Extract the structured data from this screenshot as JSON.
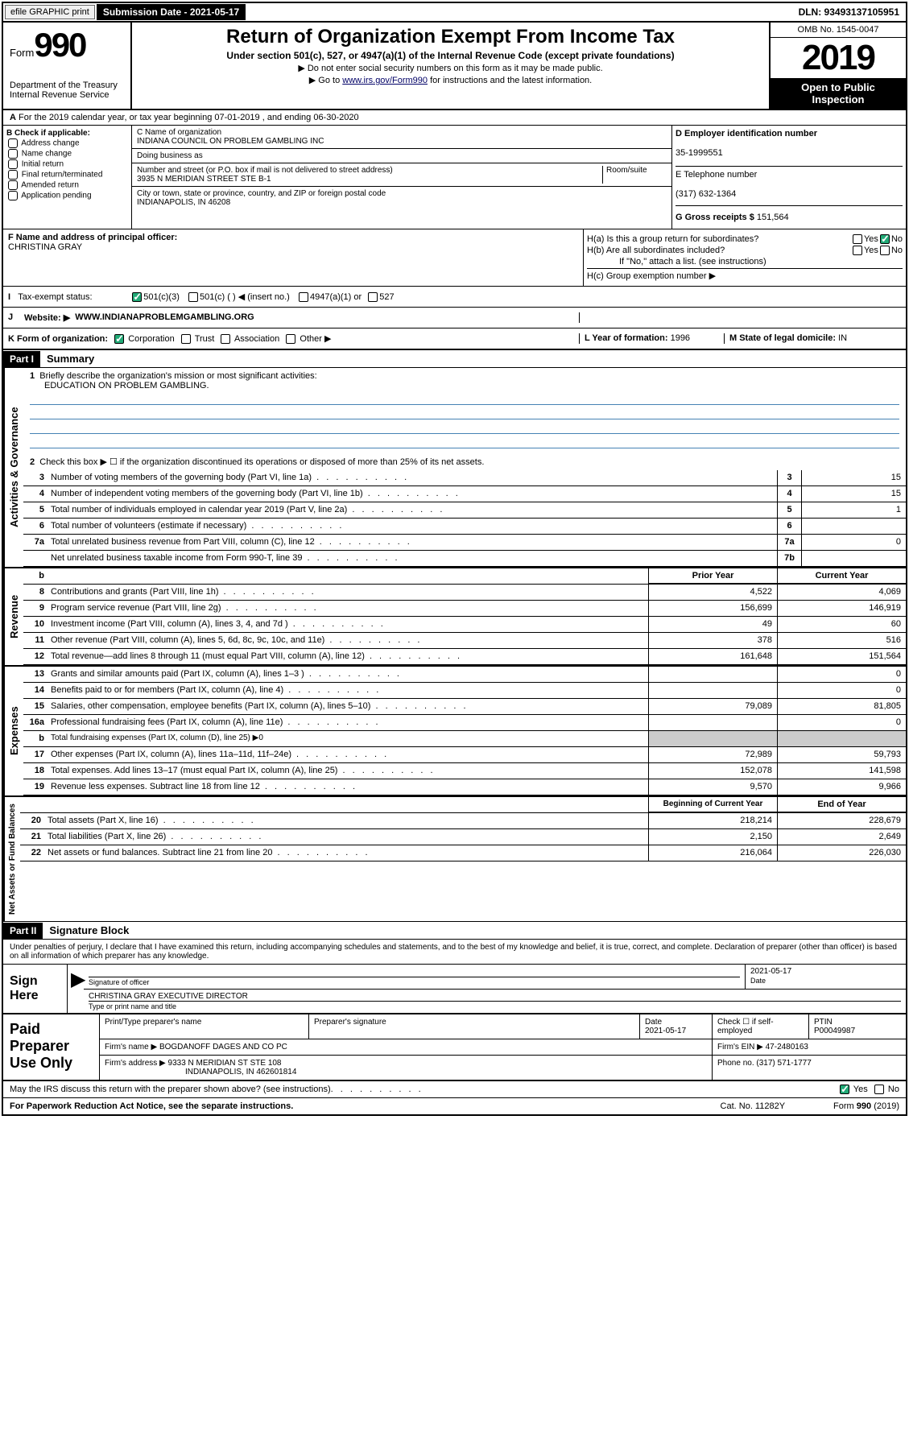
{
  "topbar": {
    "efile": "efile GRAPHIC print",
    "submission": "Submission Date - 2021-05-17",
    "dln": "DLN: 93493137105951"
  },
  "header": {
    "form_prefix": "Form",
    "form_number": "990",
    "title": "Return of Organization Exempt From Income Tax",
    "subtitle": "Under section 501(c), 527, or 4947(a)(1) of the Internal Revenue Code (except private foundations)",
    "instr1": "▶ Do not enter social security numbers on this form as it may be made public.",
    "instr2_pre": "▶ Go to ",
    "instr2_link": "www.irs.gov/Form990",
    "instr2_post": " for instructions and the latest information.",
    "omb": "OMB No. 1545-0047",
    "year": "2019",
    "open": "Open to Public Inspection",
    "dept": "Department of the Treasury\nInternal Revenue Service"
  },
  "line_a": "For the 2019 calendar year, or tax year beginning 07-01-2019     , and ending 06-30-2020",
  "box_b": {
    "label": "B Check if applicable:",
    "items": [
      "Address change",
      "Name change",
      "Initial return",
      "Final return/terminated",
      "Amended return",
      "Application pending"
    ]
  },
  "box_c": {
    "name_label": "C Name of organization",
    "name": "INDIANA COUNCIL ON PROBLEM GAMBLING INC",
    "dba_label": "Doing business as",
    "street_label": "Number and street (or P.O. box if mail is not delivered to street address)",
    "room_label": "Room/suite",
    "street": "3935 N MERIDIAN STREET STE B-1",
    "city_label": "City or town, state or province, country, and ZIP or foreign postal code",
    "city": "INDIANAPOLIS, IN  46208"
  },
  "box_d": {
    "label": "D Employer identification number",
    "value": "35-1999551"
  },
  "box_e": {
    "label": "E Telephone number",
    "value": "(317) 632-1364"
  },
  "box_g": {
    "label": "G Gross receipts $",
    "value": "151,564"
  },
  "box_f": {
    "label": "F  Name and address of principal officer:",
    "value": "CHRISTINA GRAY"
  },
  "box_h": {
    "ha": "H(a)  Is this a group return for subordinates?",
    "hb": "H(b)  Are all subordinates included?",
    "hb_note": "If \"No,\" attach a list. (see instructions)",
    "hc": "H(c)  Group exemption number ▶"
  },
  "tax_status": {
    "label": "Tax-exempt status:",
    "opts": [
      "501(c)(3)",
      "501(c) (  ) ◀ (insert no.)",
      "4947(a)(1) or",
      "527"
    ]
  },
  "website": {
    "j": "J",
    "label": "Website: ▶",
    "value": "WWW.INDIANAPROBLEMGAMBLING.ORG"
  },
  "box_k": {
    "label": "K Form of organization:",
    "opts": [
      "Corporation",
      "Trust",
      "Association",
      "Other ▶"
    ]
  },
  "box_l": {
    "label": "L Year of formation:",
    "value": "1996"
  },
  "box_m": {
    "label": "M State of legal domicile:",
    "value": "IN"
  },
  "part1": {
    "header": "Part I",
    "title": "Summary",
    "l1_label": "Briefly describe the organization's mission or most significant activities:",
    "l1_value": "EDUCATION ON PROBLEM GAMBLING.",
    "l2": "Check this box ▶ ☐  if the organization discontinued its operations or disposed of more than 25% of its net assets.",
    "lines_ag": [
      {
        "num": "3",
        "text": "Number of voting members of the governing body (Part VI, line 1a)",
        "box": "3",
        "val": "15"
      },
      {
        "num": "4",
        "text": "Number of independent voting members of the governing body (Part VI, line 1b)",
        "box": "4",
        "val": "15"
      },
      {
        "num": "5",
        "text": "Total number of individuals employed in calendar year 2019 (Part V, line 2a)",
        "box": "5",
        "val": "1"
      },
      {
        "num": "6",
        "text": "Total number of volunteers (estimate if necessary)",
        "box": "6",
        "val": ""
      },
      {
        "num": "7a",
        "text": "Total unrelated business revenue from Part VIII, column (C), line 12",
        "box": "7a",
        "val": "0"
      },
      {
        "num": "",
        "text": "Net unrelated business taxable income from Form 990-T, line 39",
        "box": "7b",
        "val": ""
      }
    ],
    "col_prior": "Prior Year",
    "col_current": "Current Year",
    "revenue": [
      {
        "num": "8",
        "text": "Contributions and grants (Part VIII, line 1h)",
        "prior": "4,522",
        "curr": "4,069"
      },
      {
        "num": "9",
        "text": "Program service revenue (Part VIII, line 2g)",
        "prior": "156,699",
        "curr": "146,919"
      },
      {
        "num": "10",
        "text": "Investment income (Part VIII, column (A), lines 3, 4, and 7d )",
        "prior": "49",
        "curr": "60"
      },
      {
        "num": "11",
        "text": "Other revenue (Part VIII, column (A), lines 5, 6d, 8c, 9c, 10c, and 11e)",
        "prior": "378",
        "curr": "516"
      },
      {
        "num": "12",
        "text": "Total revenue—add lines 8 through 11 (must equal Part VIII, column (A), line 12)",
        "prior": "161,648",
        "curr": "151,564"
      }
    ],
    "expenses": [
      {
        "num": "13",
        "text": "Grants and similar amounts paid (Part IX, column (A), lines 1–3 )",
        "prior": "",
        "curr": "0"
      },
      {
        "num": "14",
        "text": "Benefits paid to or for members (Part IX, column (A), line 4)",
        "prior": "",
        "curr": "0"
      },
      {
        "num": "15",
        "text": "Salaries, other compensation, employee benefits (Part IX, column (A), lines 5–10)",
        "prior": "79,089",
        "curr": "81,805"
      },
      {
        "num": "16a",
        "text": "Professional fundraising fees (Part IX, column (A), line 11e)",
        "prior": "",
        "curr": "0"
      },
      {
        "num": "b",
        "text": "Total fundraising expenses (Part IX, column (D), line 25) ▶0",
        "prior": "GRAY",
        "curr": "GRAY"
      },
      {
        "num": "17",
        "text": "Other expenses (Part IX, column (A), lines 11a–11d, 11f–24e)",
        "prior": "72,989",
        "curr": "59,793"
      },
      {
        "num": "18",
        "text": "Total expenses. Add lines 13–17 (must equal Part IX, column (A), line 25)",
        "prior": "152,078",
        "curr": "141,598"
      },
      {
        "num": "19",
        "text": "Revenue less expenses. Subtract line 18 from line 12",
        "prior": "9,570",
        "curr": "9,966"
      }
    ],
    "col_begin": "Beginning of Current Year",
    "col_end": "End of Year",
    "netassets": [
      {
        "num": "20",
        "text": "Total assets (Part X, line 16)",
        "prior": "218,214",
        "curr": "228,679"
      },
      {
        "num": "21",
        "text": "Total liabilities (Part X, line 26)",
        "prior": "2,150",
        "curr": "2,649"
      },
      {
        "num": "22",
        "text": "Net assets or fund balances. Subtract line 21 from line 20",
        "prior": "216,064",
        "curr": "226,030"
      }
    ],
    "vert_ag": "Activities & Governance",
    "vert_rev": "Revenue",
    "vert_exp": "Expenses",
    "vert_na": "Net Assets or Fund Balances"
  },
  "part2": {
    "header": "Part II",
    "title": "Signature Block",
    "declaration": "Under penalties of perjury, I declare that I have examined this return, including accompanying schedules and statements, and to the best of my knowledge and belief, it is true, correct, and complete. Declaration of preparer (other than officer) is based on all information of which preparer has any knowledge.",
    "sign_here": "Sign Here",
    "sig_date": "2021-05-17",
    "sig_officer": "Signature of officer",
    "sig_date_lbl": "Date",
    "sig_name": "CHRISTINA GRAY  EXECUTIVE DIRECTOR",
    "sig_name_lbl": "Type or print name and title",
    "paid_label": "Paid Preparer Use Only",
    "prep_name_lbl": "Print/Type preparer's name",
    "prep_sig_lbl": "Preparer's signature",
    "prep_date_lbl": "Date",
    "prep_date": "2021-05-17",
    "prep_check": "Check ☐ if self-employed",
    "ptin_lbl": "PTIN",
    "ptin": "P00049987",
    "firm_name_lbl": "Firm's name     ▶",
    "firm_name": "BOGDANOFF DAGES AND CO PC",
    "firm_ein_lbl": "Firm's EIN ▶",
    "firm_ein": "47-2480163",
    "firm_addr_lbl": "Firm's address ▶",
    "firm_addr": "9333 N MERIDIAN ST STE 108",
    "firm_city": "INDIANAPOLIS, IN  462601814",
    "phone_lbl": "Phone no.",
    "phone": "(317) 571-1777",
    "discuss": "May the IRS discuss this return with the preparer shown above? (see instructions)"
  },
  "footer": {
    "paperwork": "For Paperwork Reduction Act Notice, see the separate instructions.",
    "cat": "Cat. No. 11282Y",
    "form": "Form 990 (2019)"
  }
}
